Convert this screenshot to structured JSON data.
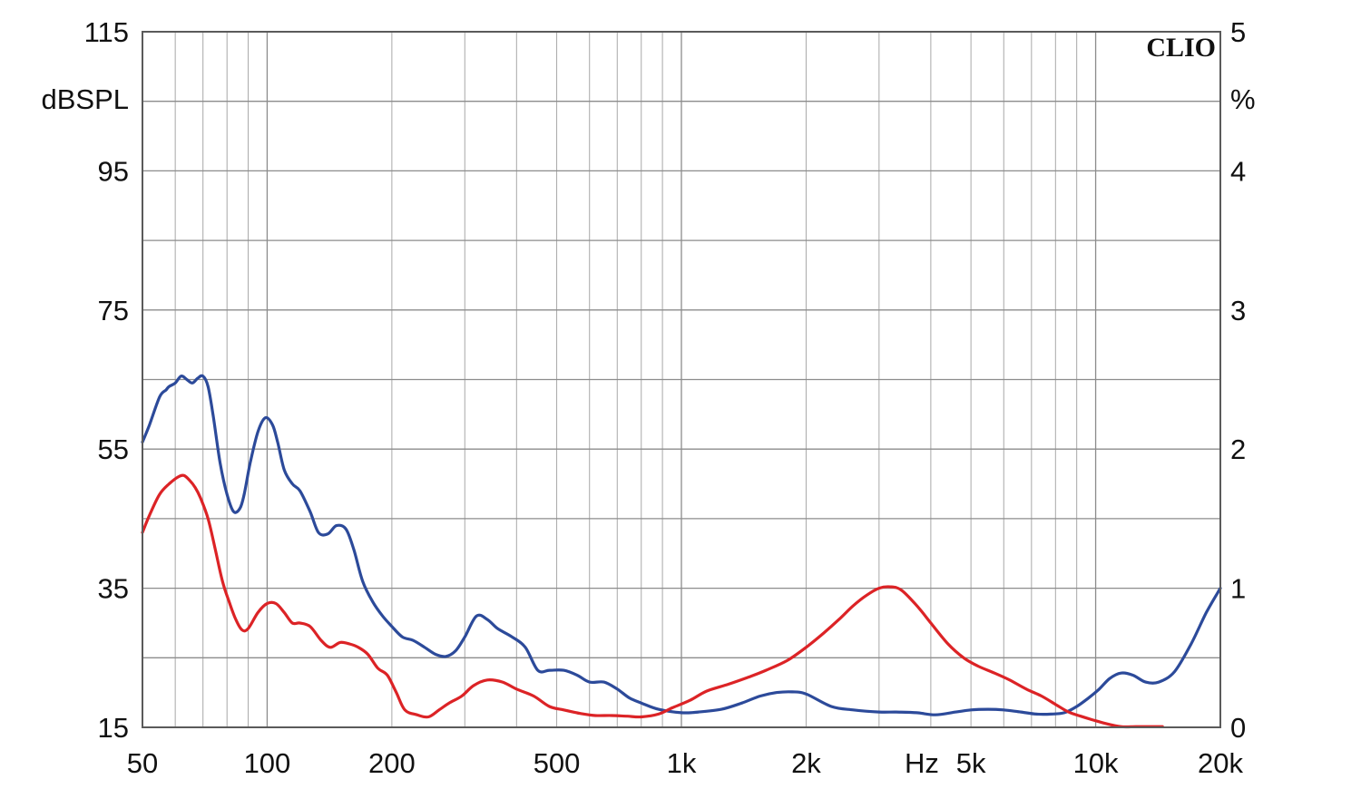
{
  "brand": "CLIO",
  "chart_data": {
    "type": "line",
    "title": "",
    "xscale": "log",
    "xlim": [
      50,
      20000
    ],
    "ylim_left": [
      15,
      115
    ],
    "ylim_right": [
      0,
      5
    ],
    "ylabel_left": "dBSPL",
    "ylabel_right": "%",
    "xlabel": "Hz",
    "grid": true,
    "colors": {
      "blue": "#2c4a9a",
      "red": "#dc2326"
    },
    "x_ticks": [
      {
        "value": 50,
        "label": "50"
      },
      {
        "value": 100,
        "label": "100"
      },
      {
        "value": 200,
        "label": "200"
      },
      {
        "value": 500,
        "label": "500"
      },
      {
        "value": 1000,
        "label": "1k"
      },
      {
        "value": 2000,
        "label": "2k"
      },
      {
        "value": 5000,
        "label": "5k"
      },
      {
        "value": 10000,
        "label": "10k"
      },
      {
        "value": 20000,
        "label": "20k"
      }
    ],
    "y_left_ticks": [
      {
        "value": 115,
        "label": "115"
      },
      {
        "value": 95,
        "label": "95"
      },
      {
        "value": 75,
        "label": "75"
      },
      {
        "value": 55,
        "label": "55"
      },
      {
        "value": 35,
        "label": "35"
      },
      {
        "value": 15,
        "label": "15"
      }
    ],
    "y_right_ticks": [
      {
        "value": 5,
        "label": "5"
      },
      {
        "value": 4,
        "label": "4"
      },
      {
        "value": 3,
        "label": "3"
      },
      {
        "value": 2,
        "label": "2"
      },
      {
        "value": 1,
        "label": "1"
      },
      {
        "value": 0,
        "label": "0"
      }
    ],
    "series": [
      {
        "color": "#2c4a9a",
        "axis": "left",
        "x": [
          50,
          52,
          55,
          57,
          58,
          60,
          62,
          64,
          66,
          68,
          70,
          72,
          74,
          77,
          80,
          83,
          86,
          88,
          91,
          95,
          99,
          103,
          106,
          110,
          115,
          120,
          127,
          133,
          140,
          147,
          155,
          162,
          170,
          180,
          190,
          200,
          212,
          225,
          240,
          255,
          270,
          285,
          300,
          320,
          340,
          360,
          390,
          420,
          450,
          480,
          520,
          560,
          600,
          650,
          700,
          750,
          800,
          880,
          1000,
          1100,
          1250,
          1400,
          1550,
          1700,
          1850,
          2000,
          2300,
          2600,
          3000,
          3300,
          3700,
          4100,
          4600,
          5000,
          5500,
          6000,
          6600,
          7200,
          7800,
          8400,
          9000,
          9600,
          10200,
          10800,
          11500,
          12300,
          13200,
          14200,
          15500,
          17000,
          18500,
          20000
        ],
        "y": [
          56,
          58.5,
          62.5,
          63.5,
          64,
          64.5,
          65.5,
          65,
          64.5,
          65.2,
          65.5,
          64,
          60,
          53,
          48.5,
          46,
          46.5,
          48.5,
          53,
          57.5,
          59.5,
          58.5,
          56,
          52,
          50,
          49,
          46,
          43,
          42.8,
          44,
          43.5,
          40.5,
          36,
          33,
          31,
          29.5,
          28,
          27.5,
          26.5,
          25.5,
          25.2,
          26,
          28,
          31,
          30.5,
          29.2,
          28,
          26.5,
          23.2,
          23.2,
          23.2,
          22.5,
          21.5,
          21.5,
          20.5,
          19.2,
          18.5,
          17.6,
          17.1,
          17.2,
          17.6,
          18.5,
          19.5,
          20,
          20.1,
          19.8,
          18,
          17.5,
          17.2,
          17.2,
          17.1,
          16.8,
          17.2,
          17.5,
          17.6,
          17.5,
          17.2,
          16.9,
          16.9,
          17.1,
          18,
          19.2,
          20.5,
          22,
          22.8,
          22.5,
          21.5,
          21.5,
          23,
          27,
          31.5,
          35
        ]
      },
      {
        "color": "#dc2326",
        "axis": "left",
        "x": [
          50,
          52,
          55,
          58,
          61,
          63,
          65,
          67,
          69,
          72,
          75,
          78,
          81,
          84,
          87,
          90,
          95,
          100,
          105,
          110,
          115,
          120,
          127,
          135,
          142,
          150,
          158,
          166,
          175,
          185,
          195,
          205,
          215,
          230,
          245,
          260,
          275,
          295,
          315,
          340,
          370,
          400,
          440,
          480,
          520,
          570,
          620,
          680,
          740,
          800,
          880,
          950,
          1050,
          1150,
          1300,
          1450,
          1600,
          1800,
          2000,
          2200,
          2400,
          2600,
          2800,
          3000,
          3200,
          3400,
          3700,
          4000,
          4400,
          4800,
          5200,
          5700,
          6200,
          6800,
          7400,
          8000,
          8600,
          9200,
          9800,
          10500,
          11500,
          12500,
          13500,
          14500
        ],
        "y": [
          43,
          45.5,
          48.5,
          50,
          51,
          51.2,
          50.5,
          49.5,
          48,
          45,
          40.5,
          36,
          33,
          30.5,
          29,
          29.2,
          31.5,
          32.8,
          32.8,
          31.5,
          30,
          30,
          29.5,
          27.5,
          26.5,
          27.2,
          27,
          26.5,
          25.5,
          23.5,
          22.5,
          20,
          17.5,
          16.8,
          16.5,
          17.5,
          18.5,
          19.5,
          21,
          21.8,
          21.5,
          20.5,
          19.5,
          18,
          17.5,
          17,
          16.7,
          16.7,
          16.6,
          16.5,
          16.9,
          17.8,
          18.9,
          20.2,
          21.2,
          22.2,
          23.2,
          24.6,
          26.5,
          28.5,
          30.5,
          32.5,
          34,
          35,
          35.2,
          34.7,
          32.5,
          30,
          27,
          25,
          23.8,
          22.8,
          21.8,
          20.5,
          19.5,
          18.3,
          17.2,
          16.6,
          16.1,
          15.6,
          15.1,
          15.1,
          15.1,
          15.1
        ]
      }
    ]
  }
}
